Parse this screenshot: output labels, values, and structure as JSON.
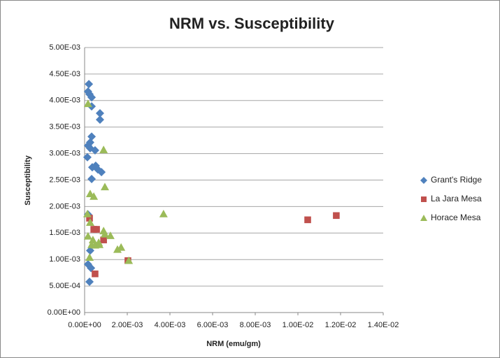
{
  "chart_data": {
    "type": "scatter",
    "title": "NRM vs. Susceptibility",
    "x_label": "NRM (emu/gm)",
    "y_label": "Susceptibility",
    "xlim": [
      0,
      0.014
    ],
    "ylim": [
      0,
      0.005
    ],
    "grid": true,
    "legend": "right",
    "xticks": [
      {
        "value": 0,
        "label": "0.00E+00"
      },
      {
        "value": 0.002,
        "label": "2.00E-03"
      },
      {
        "value": 0.004,
        "label": "4.00E-03"
      },
      {
        "value": 0.006,
        "label": "6.00E-03"
      },
      {
        "value": 0.008,
        "label": "8.00E-03"
      },
      {
        "value": 0.01,
        "label": "1.00E-02"
      },
      {
        "value": 0.012,
        "label": "1.20E-02"
      },
      {
        "value": 0.014,
        "label": "1.40E-02"
      }
    ],
    "yticks": [
      {
        "value": 0,
        "label": "0.00E+00"
      },
      {
        "value": 0.0005,
        "label": "5.00E-04"
      },
      {
        "value": 0.001,
        "label": "1.00E-03"
      },
      {
        "value": 0.0015,
        "label": "1.50E-03"
      },
      {
        "value": 0.002,
        "label": "2.00E-03"
      },
      {
        "value": 0.0025,
        "label": "2.50E-03"
      },
      {
        "value": 0.003,
        "label": "3.00E-03"
      },
      {
        "value": 0.0035,
        "label": "3.50E-03"
      },
      {
        "value": 0.004,
        "label": "4.00E-03"
      },
      {
        "value": 0.0045,
        "label": "4.50E-03"
      },
      {
        "value": 0.005,
        "label": "5.00E-03"
      }
    ],
    "series": [
      {
        "name": "Grant's Ridge",
        "color": "#4f81bd",
        "marker": "diamond",
        "x": [
          0.0002,
          0.00016,
          0.00023,
          0.00033,
          0.00033,
          0.00072,
          0.00072,
          0.00033,
          0.00026,
          0.00016,
          0.00026,
          0.00049,
          0.00013,
          0.00036,
          0.00052,
          0.00062,
          0.00079,
          0.00033,
          0.00016,
          0.00026,
          0.00016,
          0.0003,
          0.00023
        ],
        "y": [
          0.00431,
          0.00417,
          0.00412,
          0.00406,
          0.00389,
          0.00376,
          0.00364,
          0.00332,
          0.00321,
          0.00315,
          0.0031,
          0.00306,
          0.00293,
          0.00274,
          0.00277,
          0.0027,
          0.00265,
          0.00252,
          0.00185,
          0.00117,
          0.00091,
          0.00084,
          0.00058
        ]
      },
      {
        "name": "La Jara Mesa",
        "color": "#c0504d",
        "marker": "square",
        "x": [
          0.00023,
          0.00043,
          0.00056,
          0.00089,
          0.00049,
          0.00203,
          0.01046,
          0.0118
        ],
        "y": [
          0.00178,
          0.00157,
          0.00157,
          0.00137,
          0.00073,
          0.00098,
          0.00175,
          0.00183
        ]
      },
      {
        "name": "Horace Mesa",
        "color": "#9bbb59",
        "marker": "triangle",
        "x": [
          0.00016,
          0.00089,
          0.00095,
          0.00026,
          0.00043,
          0.00013,
          0.0037,
          0.00026,
          0.00089,
          0.00095,
          0.00121,
          0.00016,
          0.00039,
          0.00066,
          0.00033,
          0.00049,
          0.00069,
          0.00154,
          0.00171,
          0.00023,
          0.00207
        ],
        "y": [
          0.00394,
          0.00307,
          0.00237,
          0.00224,
          0.00219,
          0.00186,
          0.00186,
          0.0017,
          0.00154,
          0.00148,
          0.00145,
          0.00144,
          0.00137,
          0.00132,
          0.00128,
          0.00127,
          0.00128,
          0.00119,
          0.00123,
          0.00104,
          0.00098
        ]
      }
    ]
  }
}
